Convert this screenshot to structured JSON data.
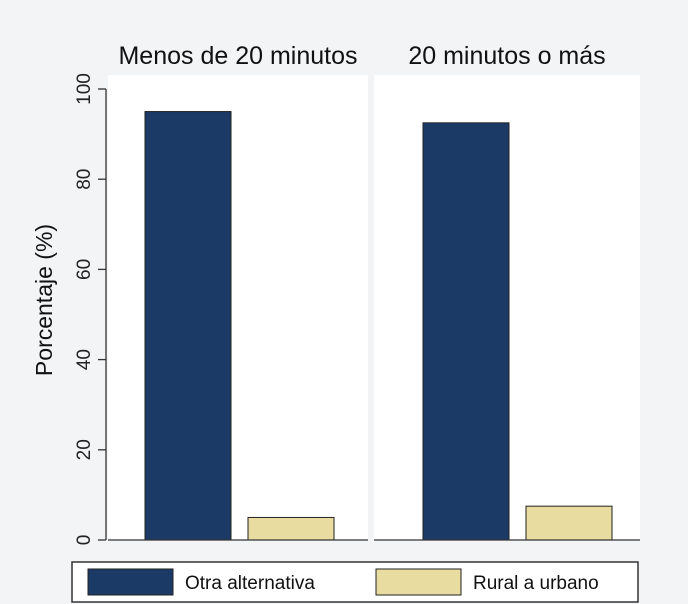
{
  "chart_data": {
    "type": "bar",
    "ylabel": "Porcentaje (%)",
    "ylim": [
      0,
      100
    ],
    "yticks": [
      0,
      20,
      40,
      60,
      80,
      100
    ],
    "grid": false,
    "legend": "bottom",
    "series": [
      {
        "name": "Otra alternativa",
        "color": "#1c3a66"
      },
      {
        "name": "Rural a urbano",
        "color": "#e8dca0"
      }
    ],
    "panels": [
      {
        "title": "Menos de 20 minutos",
        "values": [
          95,
          5
        ]
      },
      {
        "title": "20 minutos o más",
        "values": [
          92.5,
          7.5
        ]
      }
    ]
  }
}
